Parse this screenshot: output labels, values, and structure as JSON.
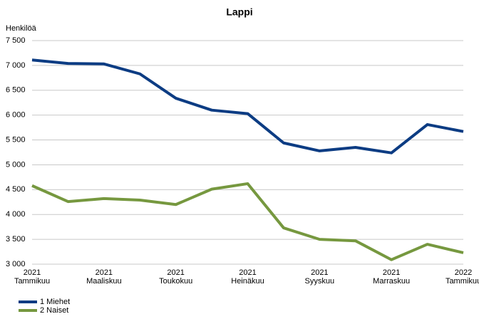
{
  "chart_data": {
    "type": "line",
    "title": "Lappi",
    "y_label": "Henkilöä",
    "categories": [
      "2021\nTammikuu",
      null,
      "2021\nMaaliskuu",
      null,
      "2021\nToukokuu",
      null,
      "2021\nHeinäkuu",
      null,
      "2021\nSyyskuu",
      null,
      "2021\nMarraskuu",
      null,
      "2022\nTammikuu"
    ],
    "series": [
      {
        "name": "1 Miehet",
        "color": "#0c3c83",
        "values": [
          7110,
          7040,
          7030,
          6830,
          6340,
          6100,
          6030,
          5440,
          5280,
          5350,
          5240,
          5810,
          5670
        ]
      },
      {
        "name": "2 Naiset",
        "color": "#76983f",
        "values": [
          4580,
          4260,
          4320,
          4290,
          4200,
          4510,
          4620,
          3730,
          3500,
          3470,
          3090,
          3400,
          3230
        ]
      }
    ],
    "ylim": [
      3000,
      7500
    ],
    "yticks": [
      {
        "value": 3000,
        "label": "3 000"
      },
      {
        "value": 3500,
        "label": "3 500"
      },
      {
        "value": 4000,
        "label": "4 000"
      },
      {
        "value": 4500,
        "label": "4 500"
      },
      {
        "value": 5000,
        "label": "5 000"
      },
      {
        "value": 5500,
        "label": "5 500"
      },
      {
        "value": 6000,
        "label": "6 000"
      },
      {
        "value": 6500,
        "label": "6 500"
      },
      {
        "value": 7000,
        "label": "7 000"
      },
      {
        "value": 7500,
        "label": "7 500"
      }
    ],
    "grid": true,
    "legend": "bottom-left"
  }
}
